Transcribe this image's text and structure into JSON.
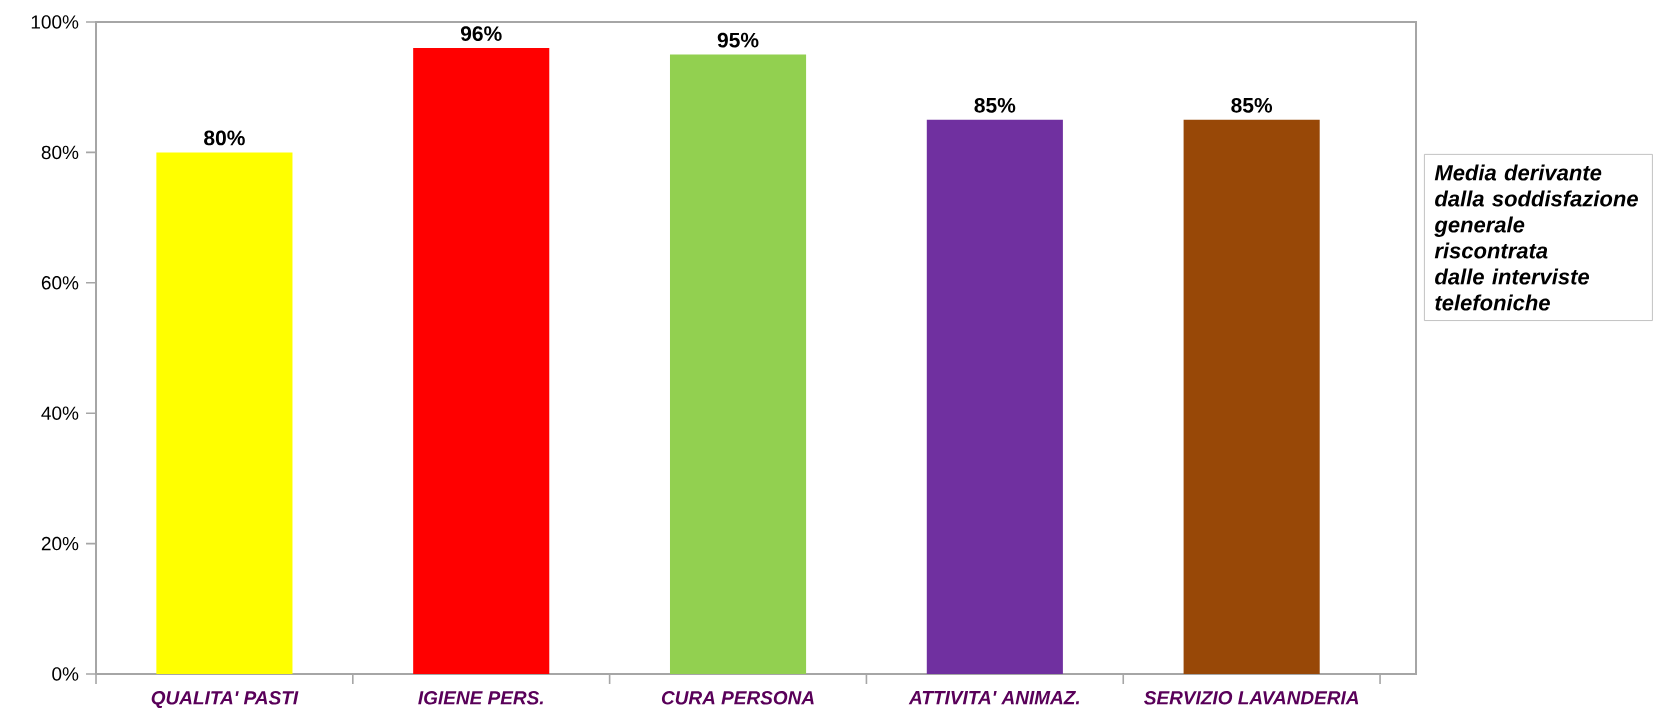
{
  "chart_data": {
    "type": "bar",
    "categories": [
      "QUALITA' PASTI",
      "IGIENE PERS.",
      "CURA PERSONA",
      "ATTIVITA' ANIMAZ.",
      "SERVIZIO LAVANDERIA"
    ],
    "values": [
      80,
      96,
      95,
      85,
      85
    ],
    "value_labels": [
      "80%",
      "96%",
      "95%",
      "85%",
      "85%"
    ],
    "colors": [
      "#ffff00",
      "#ff0000",
      "#92d050",
      "#7030a0",
      "#984807"
    ],
    "ylim": [
      0,
      100
    ],
    "yticks": [
      {
        "value": 0,
        "label": "0%"
      },
      {
        "value": 20,
        "label": "20%"
      },
      {
        "value": 40,
        "label": "40%"
      },
      {
        "value": 60,
        "label": "60%"
      },
      {
        "value": 80,
        "label": "80%"
      },
      {
        "value": 100,
        "label": "100%"
      }
    ],
    "grid": false,
    "annotations": [
      "Media derivante dalla soddisfazione generale riscontrata dalle interviste telefoniche"
    ]
  }
}
